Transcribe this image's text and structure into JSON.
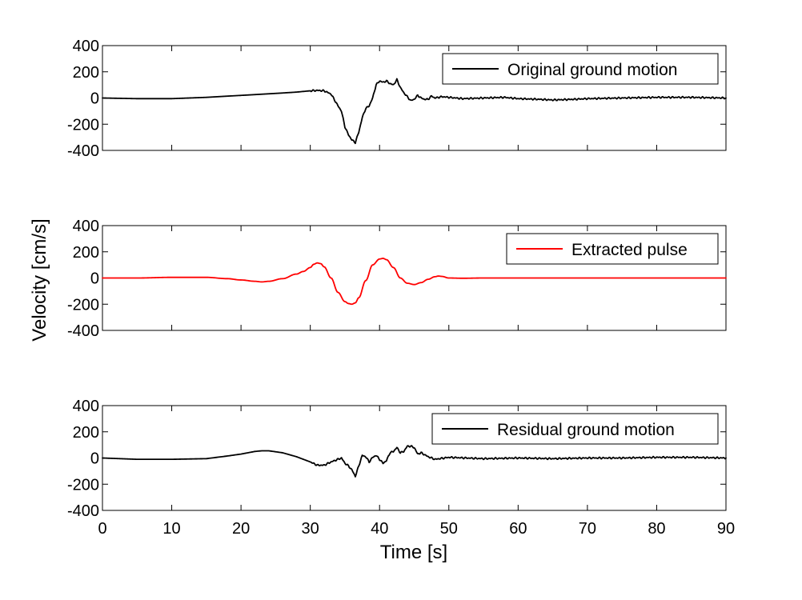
{
  "chart_data": {
    "type": "line",
    "xlabel": "Time [s]",
    "ylabel": "Velocity [cm/s]",
    "xlim": [
      0,
      90
    ],
    "ylim": [
      -400,
      400
    ],
    "xticks": [
      "0",
      "10",
      "20",
      "30",
      "40",
      "50",
      "60",
      "70",
      "80",
      "90"
    ],
    "yticks": [
      "400",
      "200",
      "0",
      "-200",
      "-400"
    ],
    "grid": false,
    "legend_position": "top-right",
    "panels": [
      {
        "legend": "Original ground motion",
        "color": "#000000",
        "x": [
          0,
          5,
          10,
          15,
          20,
          25,
          28,
          30,
          31,
          32,
          33,
          34,
          34.5,
          35,
          35.5,
          36,
          36.5,
          37,
          37.5,
          38,
          38.5,
          39,
          39.5,
          40,
          40.5,
          41,
          41.5,
          42,
          42.5,
          43,
          43.5,
          44,
          44.5,
          45,
          45.5,
          46,
          46.5,
          47,
          47.5,
          48,
          49,
          50,
          52,
          55,
          58,
          60,
          63,
          65,
          68,
          70,
          75,
          80,
          85,
          90
        ],
        "y": [
          0,
          -5,
          -5,
          5,
          20,
          35,
          45,
          55,
          58,
          55,
          30,
          -60,
          -100,
          -220,
          -280,
          -320,
          -340,
          -260,
          -150,
          -80,
          -60,
          0,
          100,
          130,
          120,
          130,
          110,
          100,
          140,
          80,
          40,
          10,
          -20,
          -10,
          20,
          0,
          -10,
          -10,
          15,
          0,
          10,
          5,
          -5,
          0,
          5,
          -5,
          -10,
          -15,
          -10,
          -5,
          0,
          5,
          5,
          0
        ]
      },
      {
        "legend": "Extracted pulse",
        "color": "#ff0000",
        "x": [
          0,
          5,
          10,
          15,
          18,
          20,
          22,
          23,
          24,
          26,
          28,
          29,
          30,
          30.5,
          31,
          31.5,
          32,
          33,
          34,
          35,
          35.5,
          36,
          36.5,
          37,
          38,
          39,
          40,
          40.5,
          41,
          42,
          43,
          44,
          45,
          46,
          47,
          48,
          48.5,
          49,
          50,
          52,
          55,
          60,
          65,
          70,
          75,
          80,
          85,
          90
        ],
        "y": [
          0,
          0,
          5,
          5,
          -5,
          -15,
          -25,
          -30,
          -25,
          -5,
          30,
          50,
          80,
          105,
          115,
          110,
          85,
          0,
          -110,
          -180,
          -195,
          -200,
          -190,
          -150,
          -20,
          100,
          145,
          150,
          140,
          80,
          0,
          -40,
          -50,
          -35,
          -10,
          10,
          15,
          12,
          0,
          -2,
          0,
          0,
          0,
          0,
          0,
          0,
          0,
          0
        ]
      },
      {
        "legend": "Residual ground motion",
        "color": "#000000",
        "x": [
          0,
          5,
          10,
          15,
          18,
          20,
          21,
          22,
          23,
          24,
          26,
          28,
          29,
          30,
          31,
          32,
          33,
          34,
          34.5,
          35,
          35.5,
          36,
          36.5,
          37,
          37.5,
          38,
          38.5,
          39,
          39.5,
          40,
          40.5,
          41,
          41.5,
          42,
          42.5,
          43,
          43.5,
          44,
          44.5,
          45,
          45.5,
          46,
          47,
          48,
          50,
          55,
          60,
          65,
          70,
          75,
          80,
          85,
          90
        ],
        "y": [
          0,
          -10,
          -10,
          -5,
          15,
          30,
          40,
          50,
          55,
          55,
          40,
          10,
          -10,
          -30,
          -55,
          -55,
          -30,
          -10,
          0,
          -40,
          -60,
          -90,
          -140,
          -60,
          20,
          10,
          -30,
          5,
          20,
          -10,
          -40,
          -20,
          40,
          50,
          80,
          40,
          50,
          90,
          90,
          80,
          30,
          40,
          10,
          -10,
          5,
          -5,
          0,
          -5,
          0,
          0,
          5,
          5,
          0
        ]
      }
    ]
  }
}
